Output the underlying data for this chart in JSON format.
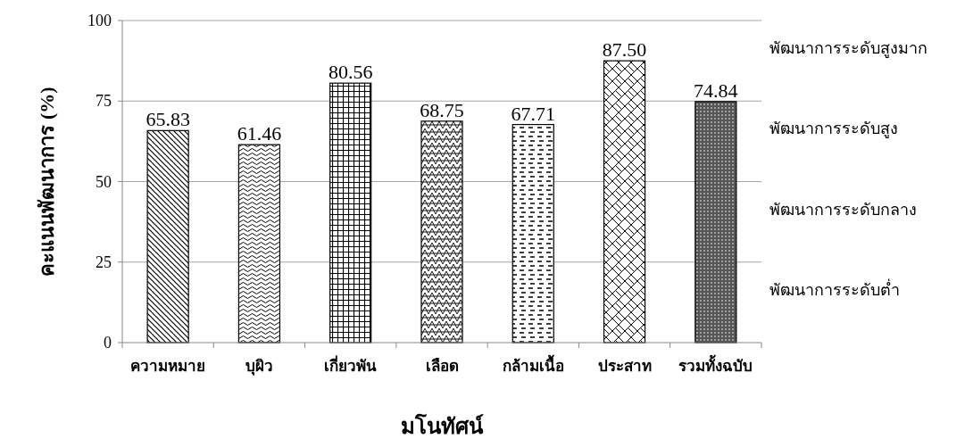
{
  "chart_data": {
    "type": "bar",
    "categories": [
      "ความหมาย",
      "บุผิว",
      "เกี่ยวพัน",
      "เลือด",
      "กล้ามเนื้อ",
      "ประสาท",
      "รวมทั้งฉบับ"
    ],
    "values": [
      65.83,
      61.46,
      80.56,
      68.75,
      67.71,
      87.5,
      74.84
    ],
    "value_labels": [
      "65.83",
      "61.46",
      "80.56",
      "68.75",
      "67.71",
      "87.50",
      "74.84"
    ],
    "color": "#000000",
    "ylim": [
      0,
      100
    ],
    "yticks": [
      0,
      25,
      50,
      75,
      100
    ],
    "grid": "y",
    "xlabel": "มโนทัศน์",
    "ylabel": "คะแนนพัฒนาการ (%)",
    "annotations": [
      "พัฒนาการระดับสูงมาก",
      "พัฒนาการระดับสูง",
      "พัฒนาการระดับกลาง",
      "พัฒนาการระดับต่ำ"
    ]
  }
}
